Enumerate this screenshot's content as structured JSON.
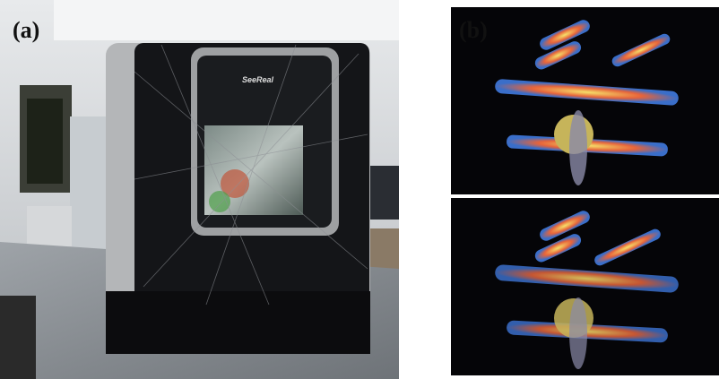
{
  "panels": [
    {
      "label": "(a)",
      "device_text": "SeeReal"
    },
    {
      "label": "(b)"
    }
  ]
}
